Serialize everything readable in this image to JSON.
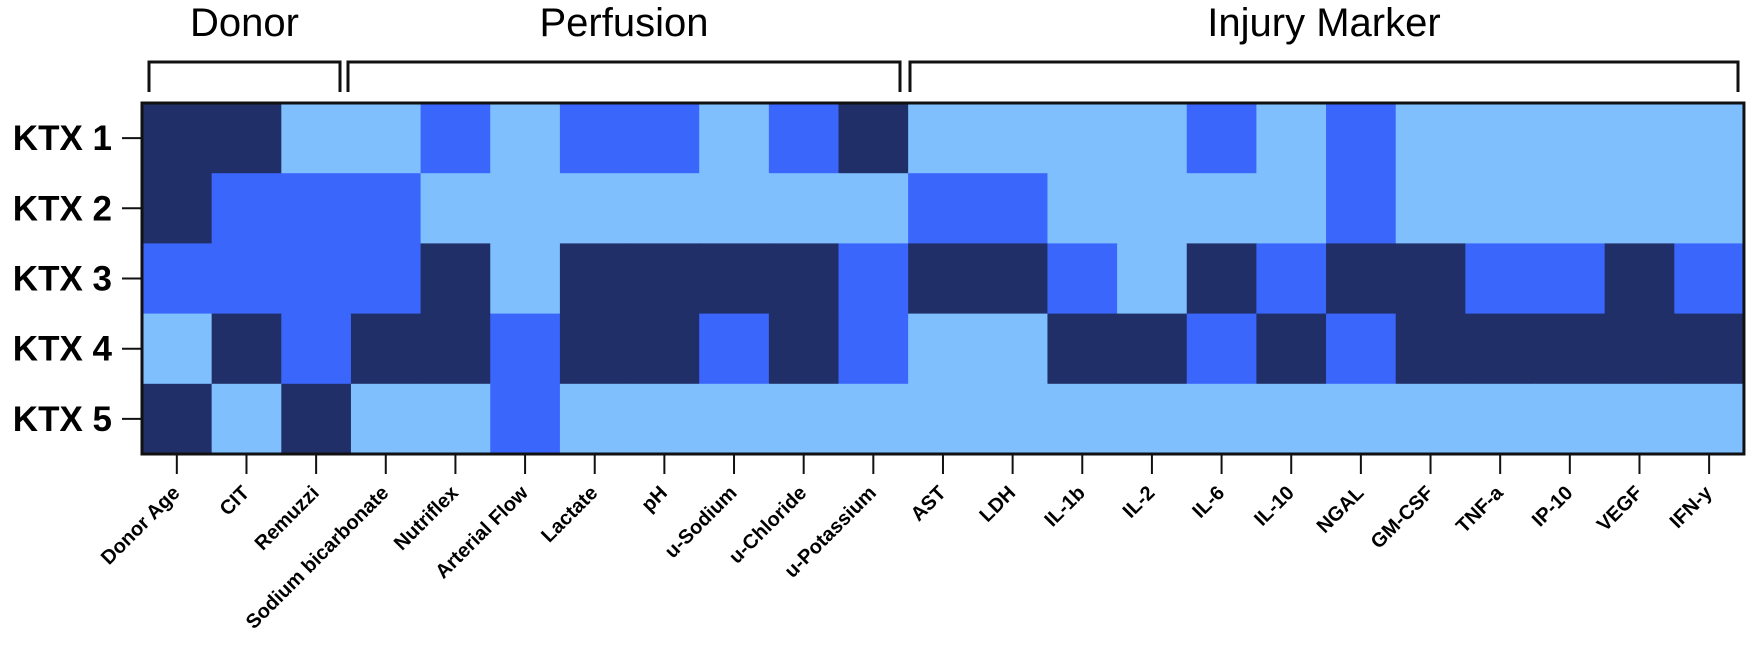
{
  "chart_data": {
    "type": "heatmap",
    "groups": [
      {
        "label": "Donor",
        "start": 0,
        "end": 2
      },
      {
        "label": "Perfusion",
        "start": 3,
        "end": 10
      },
      {
        "label": "Injury Marker",
        "start": 11,
        "end": 22
      }
    ],
    "rows": [
      "KTX 1",
      "KTX 2",
      "KTX 3",
      "KTX 4",
      "KTX 5"
    ],
    "columns": [
      "Donor Age",
      "CIT",
      "Remuzzi",
      "Sodium bicarbonate",
      "Nutriflex",
      "Arterial Flow",
      "Lactate",
      "pH",
      "u-Sodium",
      "u-Chloride",
      "u-Potassium",
      "AST",
      "LDH",
      "IL-1b",
      "IL-2",
      "IL-6",
      "IL-10",
      "NGAL",
      "GM-CSF",
      "TNF-a",
      "IP-10",
      "VEGF",
      "IFN-y"
    ],
    "levels": [
      [
        3,
        3,
        1,
        1,
        2,
        1,
        2,
        2,
        1,
        2,
        3,
        1,
        1,
        1,
        1,
        2,
        1,
        2,
        1,
        1,
        1,
        1,
        1
      ],
      [
        3,
        2,
        2,
        2,
        1,
        1,
        1,
        1,
        1,
        1,
        1,
        2,
        2,
        1,
        1,
        1,
        1,
        2,
        1,
        1,
        1,
        1,
        1
      ],
      [
        2,
        2,
        2,
        2,
        3,
        1,
        3,
        3,
        3,
        3,
        2,
        3,
        3,
        2,
        1,
        3,
        2,
        3,
        3,
        2,
        2,
        3,
        2
      ],
      [
        1,
        3,
        2,
        3,
        3,
        2,
        3,
        3,
        2,
        3,
        2,
        1,
        1,
        3,
        3,
        2,
        3,
        2,
        3,
        3,
        3,
        3,
        3
      ],
      [
        3,
        1,
        3,
        1,
        1,
        2,
        1,
        1,
        1,
        1,
        1,
        1,
        1,
        1,
        1,
        1,
        1,
        1,
        1,
        1,
        1,
        1,
        1
      ]
    ],
    "colors": {
      "1": "#7fbffd",
      "2": "#3b66fb",
      "3": "#212f68"
    },
    "border_color": "#111111"
  }
}
